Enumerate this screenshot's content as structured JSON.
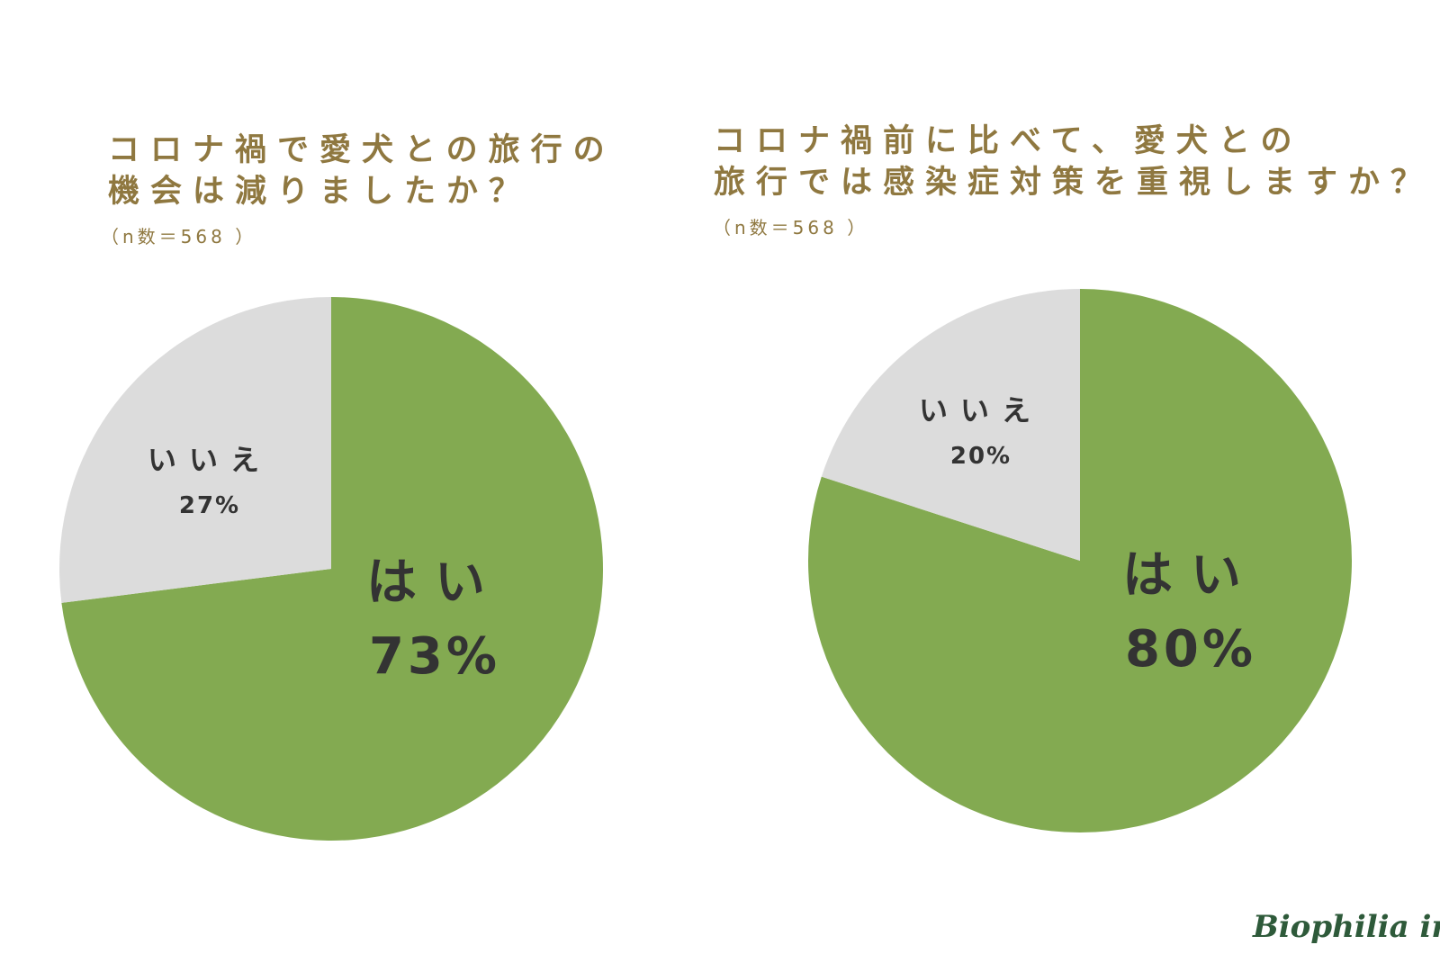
{
  "chart_data": [
    {
      "type": "pie",
      "title": [
        "コロナ禍で愛犬との旅行の",
        "機会は減りましたか？"
      ],
      "sample_size_label": "（n数＝568 ）",
      "categories": [
        "はい",
        "いいえ"
      ],
      "values": [
        73,
        27
      ],
      "value_labels": [
        "73%",
        "27%"
      ],
      "colors": [
        "#83aa51",
        "#dcdcdc"
      ]
    },
    {
      "type": "pie",
      "title": [
        "コロナ禍前に比べて、愛犬との",
        "旅行では感染症対策を重視しますか？"
      ],
      "sample_size_label": "（n数＝568 ）",
      "categories": [
        "はい",
        "いいえ"
      ],
      "values": [
        80,
        20
      ],
      "value_labels": [
        "80%",
        "20%"
      ],
      "colors": [
        "#83aa51",
        "#dcdcdc"
      ]
    }
  ],
  "logo": {
    "text": "Biophilia inc.",
    "color": "#2e5a3a"
  }
}
